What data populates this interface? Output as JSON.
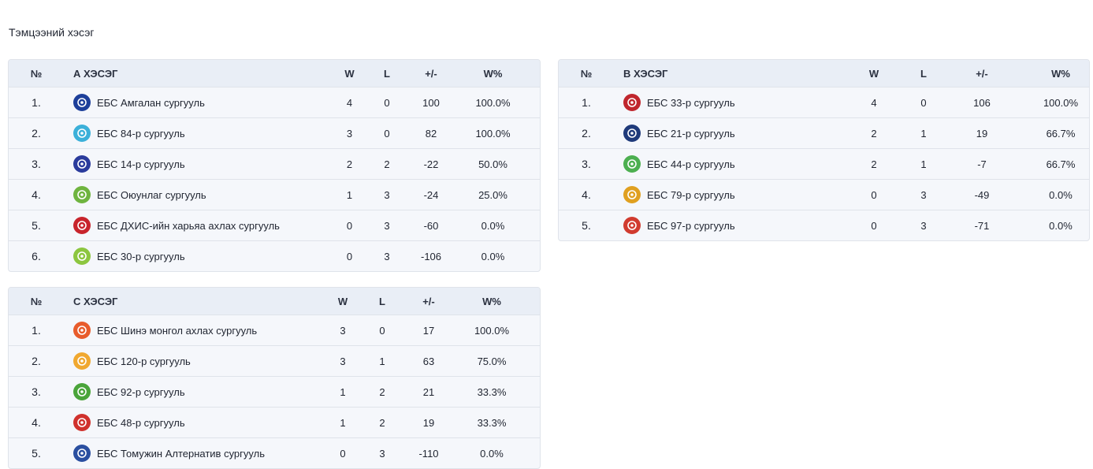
{
  "page_title": "Тэмцээний хэсэг",
  "headers": {
    "rank": "№",
    "w": "W",
    "l": "L",
    "diff": "+/-",
    "pct": "W%"
  },
  "groups": [
    {
      "name": "А ХЭСЭГ",
      "rows": [
        {
          "rank": "1.",
          "team": "ЕБС Амгалан сургууль",
          "w": "4",
          "l": "0",
          "diff": "100",
          "pct": "100.0%",
          "logo_color": "#1d3f9a"
        },
        {
          "rank": "2.",
          "team": "ЕБС 84-р сургууль",
          "w": "3",
          "l": "0",
          "diff": "82",
          "pct": "100.0%",
          "logo_color": "#3bb0d9"
        },
        {
          "rank": "3.",
          "team": "ЕБС 14-р сургууль",
          "w": "2",
          "l": "2",
          "diff": "-22",
          "pct": "50.0%",
          "logo_color": "#2a3b9c"
        },
        {
          "rank": "4.",
          "team": "ЕБС Оюунлаг сургууль",
          "w": "1",
          "l": "3",
          "diff": "-24",
          "pct": "25.0%",
          "logo_color": "#6fb43f"
        },
        {
          "rank": "5.",
          "team": "ЕБС ДХИС-ийн харьяа ахлах сургууль",
          "w": "0",
          "l": "3",
          "diff": "-60",
          "pct": "0.0%",
          "logo_color": "#c8242c"
        },
        {
          "rank": "6.",
          "team": "ЕБС 30-р сургууль",
          "w": "0",
          "l": "3",
          "diff": "-106",
          "pct": "0.0%",
          "logo_color": "#8cc63f"
        }
      ]
    },
    {
      "name": "В ХЭСЭГ",
      "rows": [
        {
          "rank": "1.",
          "team": "ЕБС 33-р сургууль",
          "w": "4",
          "l": "0",
          "diff": "106",
          "pct": "100.0%",
          "logo_color": "#c0262d"
        },
        {
          "rank": "2.",
          "team": "ЕБС 21-р сургууль",
          "w": "2",
          "l": "1",
          "diff": "19",
          "pct": "66.7%",
          "logo_color": "#1f3a7a"
        },
        {
          "rank": "3.",
          "team": "ЕБС 44-р сургууль",
          "w": "2",
          "l": "1",
          "diff": "-7",
          "pct": "66.7%",
          "logo_color": "#4caf50"
        },
        {
          "rank": "4.",
          "team": "ЕБС 79-р сургууль",
          "w": "0",
          "l": "3",
          "diff": "-49",
          "pct": "0.0%",
          "logo_color": "#e0a020"
        },
        {
          "rank": "5.",
          "team": "ЕБС 97-р сургууль",
          "w": "0",
          "l": "3",
          "diff": "-71",
          "pct": "0.0%",
          "logo_color": "#d13b2f"
        }
      ]
    },
    {
      "name": "С ХЭСЭГ",
      "rows": [
        {
          "rank": "1.",
          "team": "ЕБС Шинэ монгол ахлах сургууль",
          "w": "3",
          "l": "0",
          "diff": "17",
          "pct": "100.0%",
          "logo_color": "#e85c2c"
        },
        {
          "rank": "2.",
          "team": "ЕБС 120-р сургууль",
          "w": "3",
          "l": "1",
          "diff": "63",
          "pct": "75.0%",
          "logo_color": "#f0a830"
        },
        {
          "rank": "3.",
          "team": "ЕБС 92-р сургууль",
          "w": "1",
          "l": "2",
          "diff": "21",
          "pct": "33.3%",
          "logo_color": "#4aa43a"
        },
        {
          "rank": "4.",
          "team": "ЕБС 48-р сургууль",
          "w": "1",
          "l": "2",
          "diff": "19",
          "pct": "33.3%",
          "logo_color": "#d0312d"
        },
        {
          "rank": "5.",
          "team": "ЕБС Томужин Алтернатив сургууль",
          "w": "0",
          "l": "3",
          "diff": "-110",
          "pct": "0.0%",
          "logo_color": "#2a4fa0"
        }
      ]
    }
  ]
}
